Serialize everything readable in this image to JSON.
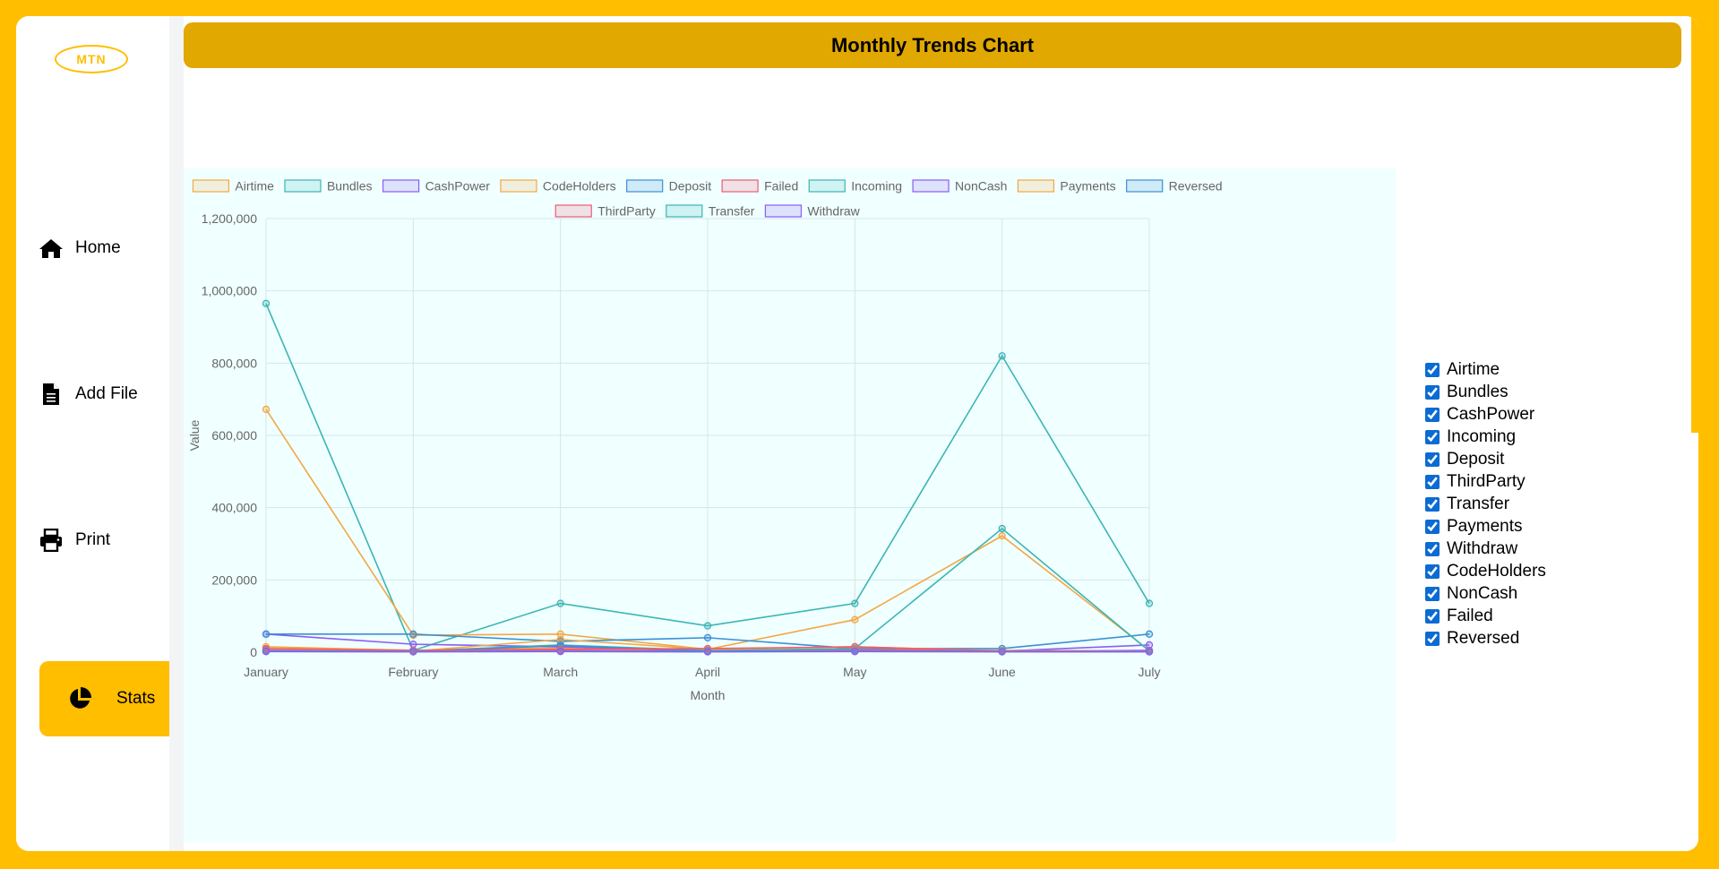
{
  "sidebar": {
    "logo_text": "MTN",
    "items": [
      {
        "label": "Home",
        "icon": "home-icon"
      },
      {
        "label": "Add File",
        "icon": "file-icon"
      },
      {
        "label": "Print",
        "icon": "printer-icon"
      },
      {
        "label": "Stats",
        "icon": "pie-chart-icon",
        "active": true
      }
    ]
  },
  "header": {
    "title": "Monthly Trends Chart"
  },
  "colors": {
    "brand": "#FFBE00",
    "title_bar": "#E0A800",
    "chart_bg": "#f0ffff"
  },
  "toggles": [
    "Airtime",
    "Bundles",
    "CashPower",
    "Incoming",
    "Deposit",
    "ThirdParty",
    "Transfer",
    "Payments",
    "Withdraw",
    "CodeHolders",
    "NonCash",
    "Failed",
    "Reversed"
  ],
  "chart_data": {
    "type": "line",
    "xlabel": "Month",
    "ylabel": "Value",
    "ylim": [
      0,
      1200000
    ],
    "yticks": [
      "0",
      "200,000",
      "400,000",
      "600,000",
      "800,000",
      "1,000,000",
      "1,200,000"
    ],
    "categories": [
      "January",
      "February",
      "March",
      "April",
      "May",
      "June",
      "July"
    ],
    "legend_position": "top",
    "series": [
      {
        "name": "Airtime",
        "color": "#f4a742",
        "values": [
          15000,
          5000,
          12000,
          5000,
          8000,
          5000,
          3000
        ]
      },
      {
        "name": "Bundles",
        "color": "#3cb5b5",
        "values": [
          965000,
          5000,
          135000,
          73000,
          135000,
          820000,
          135000
        ]
      },
      {
        "name": "CashPower",
        "color": "#8b5cf6",
        "values": [
          50000,
          22000,
          15000,
          5000,
          5000,
          3000,
          20000
        ]
      },
      {
        "name": "CodeHolders",
        "color": "#f4a742",
        "values": [
          672000,
          47000,
          50000,
          8000,
          90000,
          322000,
          5000
        ]
      },
      {
        "name": "Deposit",
        "color": "#3b8fd6",
        "values": [
          50000,
          50000,
          30000,
          40000,
          10000,
          10000,
          50000
        ]
      },
      {
        "name": "Failed",
        "color": "#f05a73",
        "values": [
          8000,
          3000,
          5000,
          4000,
          6000,
          4000,
          3000
        ]
      },
      {
        "name": "Incoming",
        "color": "#3cb5b5",
        "values": [
          5000,
          3000,
          20000,
          5000,
          10000,
          342000,
          3000
        ]
      },
      {
        "name": "NonCash",
        "color": "#8b5cf6",
        "values": [
          3000,
          2000,
          3000,
          2000,
          2000,
          2000,
          5000
        ]
      },
      {
        "name": "Payments",
        "color": "#f4a742",
        "values": [
          5000,
          3000,
          35000,
          8000,
          15000,
          4000,
          3000
        ]
      },
      {
        "name": "Reversed",
        "color": "#3b8fd6",
        "values": [
          4000,
          2000,
          18000,
          3000,
          3000,
          3000,
          3000
        ]
      },
      {
        "name": "ThirdParty",
        "color": "#f05a73",
        "values": [
          10000,
          5000,
          8000,
          10000,
          15000,
          3000,
          3000
        ]
      },
      {
        "name": "Transfer",
        "color": "#3cb5b5",
        "values": [
          2000,
          2000,
          3000,
          2000,
          3000,
          2000,
          2000
        ]
      },
      {
        "name": "Withdraw",
        "color": "#8b5cf6",
        "values": [
          2000,
          1000,
          2000,
          1000,
          2000,
          1000,
          1000
        ]
      }
    ]
  }
}
